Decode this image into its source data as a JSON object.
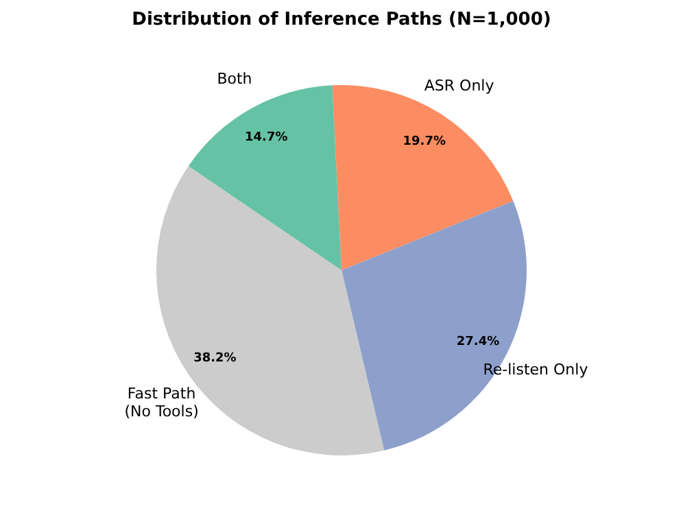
{
  "chart_data": {
    "type": "pie",
    "title": "Distribution of Inference Paths (N=1,000)",
    "categories": [
      "ASR Only",
      "Re-listen Only",
      "Fast Path\n(No Tools)",
      "Both"
    ],
    "values": [
      19.7,
      27.4,
      38.2,
      14.7
    ],
    "colors": [
      "#fc8d62",
      "#8da0cb",
      "#cccccc",
      "#66c2a5"
    ],
    "value_labels": [
      "19.7%",
      "27.4%",
      "38.2%",
      "14.7%"
    ],
    "legend": false
  }
}
